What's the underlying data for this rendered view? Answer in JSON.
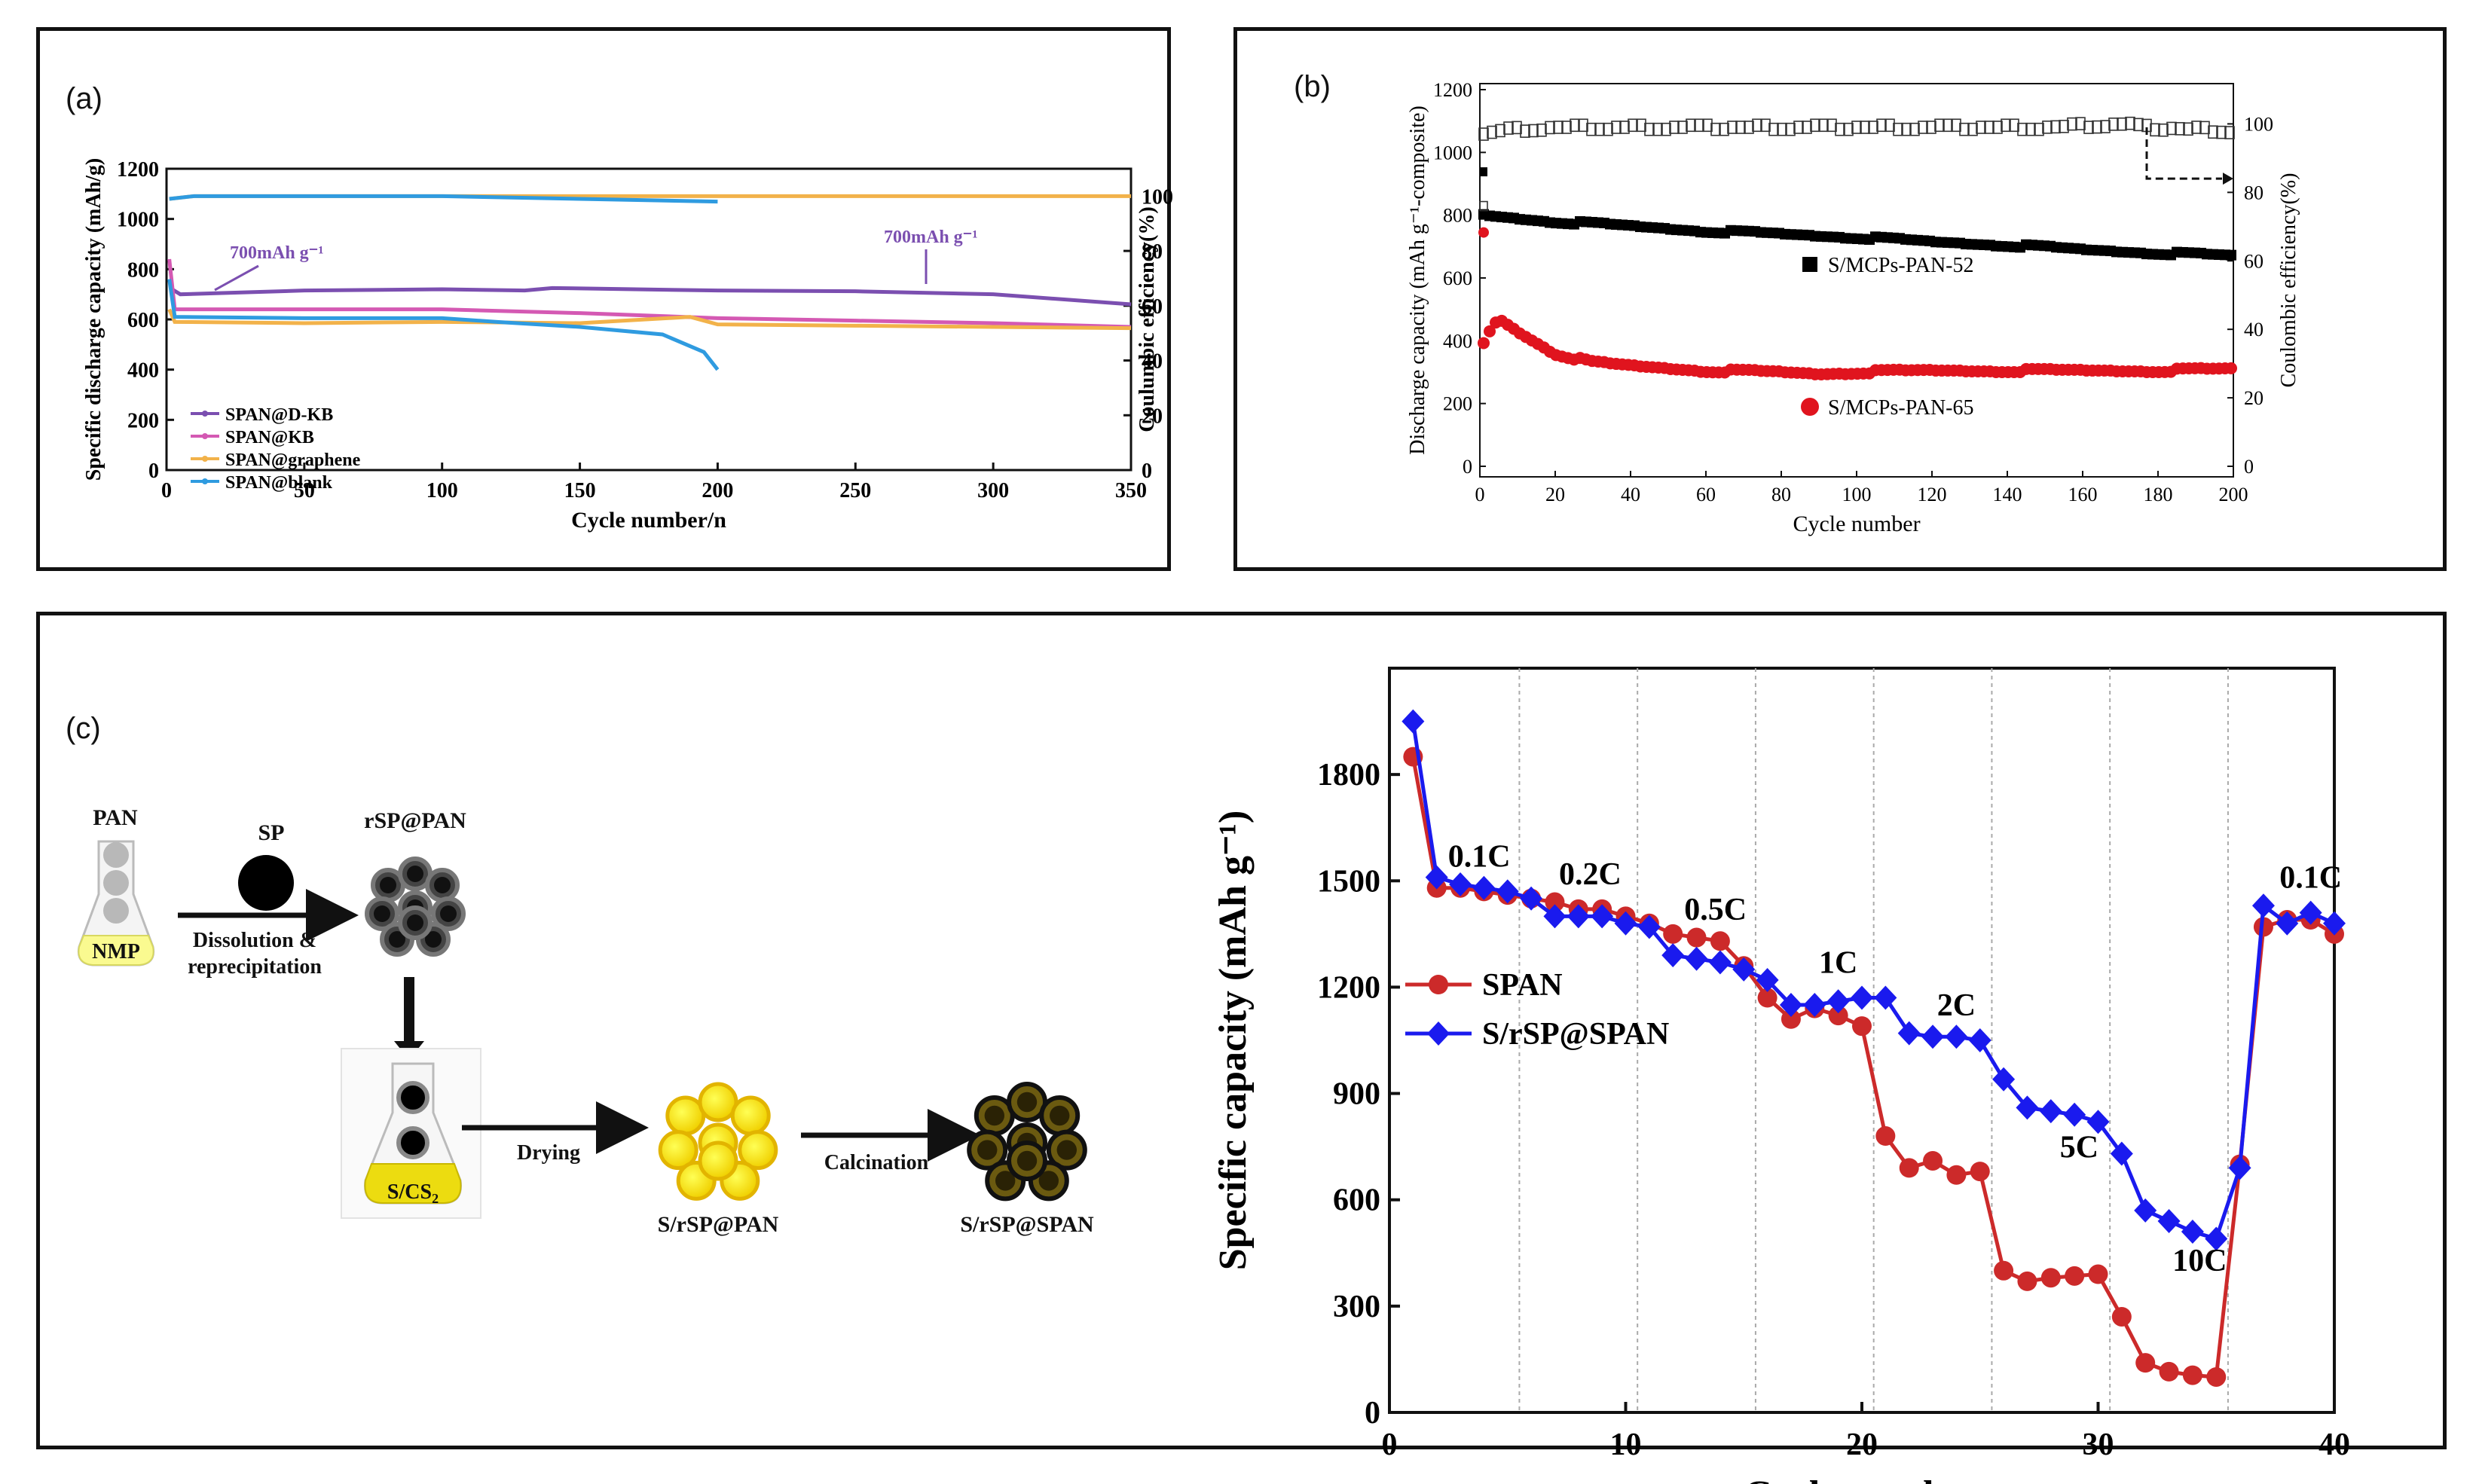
{
  "panels": {
    "a": {
      "label": "(a)"
    },
    "b": {
      "label": "(b)"
    },
    "c": {
      "label": "(c)"
    }
  },
  "scheme": {
    "pan": "PAN",
    "nmp": "NMP",
    "sp": "SP",
    "rsp_pan": "rSP@PAN",
    "step1": "Dissolution &",
    "step1b": "reprecipitation",
    "s_cs2": "S/CS",
    "s_cs2_sub": "2",
    "drying": "Drying",
    "s_rsp_pan": "S/rSP@PAN",
    "calcination": "Calcination",
    "s_rsp_span": "S/rSP@SPAN"
  },
  "chart_data": [
    {
      "id": "a",
      "type": "line",
      "xlabel": "Cycle number/n",
      "ylabel": "Specific discharge capacity (mAh/g)",
      "y2label": "Coulumbic efficiency(%)",
      "xlim": [
        0,
        350
      ],
      "ylim": [
        0,
        1200
      ],
      "y2lim": [
        0,
        110
      ],
      "xticks": [
        0,
        50,
        100,
        150,
        200,
        250,
        300,
        350
      ],
      "yticks": [
        0,
        200,
        400,
        600,
        800,
        1000,
        1200
      ],
      "y2ticks": [
        0,
        20,
        40,
        60,
        80,
        100
      ],
      "annotations": [
        "700mAh g⁻¹",
        "700mAh g⁻¹"
      ],
      "legend_position": "bottom-left",
      "colors": {
        "SPAN@D-KB": "#7b4fb0",
        "SPAN@KB": "#d459b3",
        "SPAN@graphene": "#f2b24a",
        "SPAN@blank": "#2f9be0"
      },
      "series": [
        {
          "name": "SPAN@D-KB",
          "x": [
            2,
            5,
            50,
            100,
            130,
            140,
            200,
            250,
            300,
            350
          ],
          "values": [
            720,
            700,
            715,
            720,
            715,
            725,
            715,
            712,
            700,
            660
          ]
        },
        {
          "name": "SPAN@KB",
          "x": [
            1,
            3,
            50,
            100,
            150,
            200,
            250,
            300,
            350
          ],
          "values": [
            840,
            640,
            640,
            640,
            625,
            605,
            595,
            585,
            570
          ]
        },
        {
          "name": "SPAN@graphene",
          "x": [
            1,
            3,
            50,
            100,
            150,
            190,
            200,
            250,
            300,
            350
          ],
          "values": [
            640,
            590,
            585,
            590,
            585,
            610,
            580,
            575,
            570,
            565
          ]
        },
        {
          "name": "SPAN@blank",
          "x": [
            1,
            3,
            50,
            100,
            120,
            150,
            180,
            195,
            200
          ],
          "values": [
            760,
            610,
            605,
            605,
            590,
            570,
            540,
            470,
            400
          ]
        }
      ],
      "efficiency_series": [
        {
          "name": "SPAN@D-KB CE",
          "x": [
            1,
            10,
            100,
            200,
            350
          ],
          "values": [
            99,
            100,
            100,
            100,
            100
          ]
        },
        {
          "name": "SPAN@blank CE",
          "x": [
            1,
            10,
            100,
            200
          ],
          "values": [
            99,
            100,
            100,
            98
          ]
        }
      ]
    },
    {
      "id": "b",
      "type": "scatter",
      "xlabel": "Cycle number",
      "ylabel": "Discharge capacity (mAh g⁻¹-composite)",
      "y2label": "Coulombic efficiency(%)",
      "xlim": [
        0,
        200
      ],
      "ylim": [
        0,
        1200
      ],
      "y2lim": [
        0,
        100
      ],
      "xticks": [
        0,
        20,
        40,
        60,
        80,
        100,
        120,
        140,
        160,
        180,
        200
      ],
      "yticks": [
        0,
        200,
        400,
        600,
        800,
        1000,
        1200
      ],
      "y2ticks": [
        0,
        20,
        40,
        60,
        80,
        100
      ],
      "legend_position": "center",
      "colors": {
        "S/MCPs-PAN-52": "#000000",
        "S/MCPs-PAN-65": "#e0141e"
      },
      "series": [
        {
          "name": "S/MCPs-PAN-52",
          "x": [
            1,
            5,
            20,
            40,
            60,
            80,
            100,
            120,
            140,
            160,
            180,
            200
          ],
          "values": [
            800,
            795,
            780,
            765,
            750,
            740,
            730,
            715,
            705,
            690,
            680,
            670
          ]
        },
        {
          "name": "S/MCPs-PAN-65",
          "x": [
            1,
            3,
            5,
            10,
            20,
            30,
            40,
            60,
            80,
            90,
            100,
            120,
            140,
            160,
            180,
            200
          ],
          "values": [
            390,
            440,
            470,
            430,
            360,
            330,
            320,
            305,
            300,
            295,
            300,
            305,
            305,
            305,
            305,
            310
          ]
        }
      ],
      "efficiency_series": [
        {
          "name": "CE",
          "x": [
            1,
            5,
            20,
            50,
            100,
            150,
            170,
            176,
            200
          ],
          "values": [
            97,
            98,
            99,
            99,
            99,
            99,
            100,
            99,
            98
          ]
        }
      ],
      "outliers": [
        {
          "x": 1,
          "y": 745
        },
        {
          "x": 1,
          "y2": 86
        },
        {
          "x": 1,
          "y2": 76
        }
      ]
    },
    {
      "id": "c",
      "type": "line",
      "xlabel": "Cycle number",
      "ylabel": "Specific capacity (mAh g⁻¹)",
      "xlim": [
        0,
        40
      ],
      "ylim": [
        0,
        2000
      ],
      "xticks": [
        0,
        10,
        20,
        30,
        40
      ],
      "yticks": [
        0,
        300,
        600,
        900,
        1200,
        1500,
        1800
      ],
      "rate_labels": [
        "0.1C",
        "0.2C",
        "0.5C",
        "1C",
        "2C",
        "5C",
        "10C",
        "0.1C"
      ],
      "legend_position": "left",
      "colors": {
        "SPAN": "#cc2a2a",
        "S/rSP@SPAN": "#1a1aee"
      },
      "x": [
        1,
        2,
        3,
        4,
        5,
        6,
        7,
        8,
        9,
        10,
        11,
        12,
        13,
        14,
        15,
        16,
        17,
        18,
        19,
        20,
        21,
        22,
        23,
        24,
        25,
        26,
        27,
        28,
        29,
        30,
        31,
        32,
        33,
        34,
        35,
        36,
        37,
        38,
        39,
        40
      ],
      "series": [
        {
          "name": "SPAN",
          "values": [
            1850,
            1480,
            1480,
            1470,
            1460,
            1450,
            1440,
            1420,
            1420,
            1400,
            1380,
            1350,
            1340,
            1330,
            1260,
            1170,
            1110,
            1140,
            1120,
            1090,
            780,
            690,
            710,
            670,
            680,
            400,
            370,
            380,
            385,
            390,
            270,
            140,
            115,
            105,
            100,
            700,
            1370,
            1390,
            1390,
            1350
          ]
        },
        {
          "name": "S/rSP@SPAN",
          "values": [
            1950,
            1510,
            1490,
            1480,
            1470,
            1450,
            1400,
            1400,
            1400,
            1380,
            1370,
            1290,
            1280,
            1270,
            1250,
            1220,
            1150,
            1150,
            1160,
            1170,
            1170,
            1070,
            1060,
            1060,
            1050,
            940,
            860,
            850,
            840,
            820,
            730,
            570,
            540,
            510,
            490,
            690,
            1430,
            1380,
            1410,
            1380
          ]
        }
      ]
    }
  ]
}
